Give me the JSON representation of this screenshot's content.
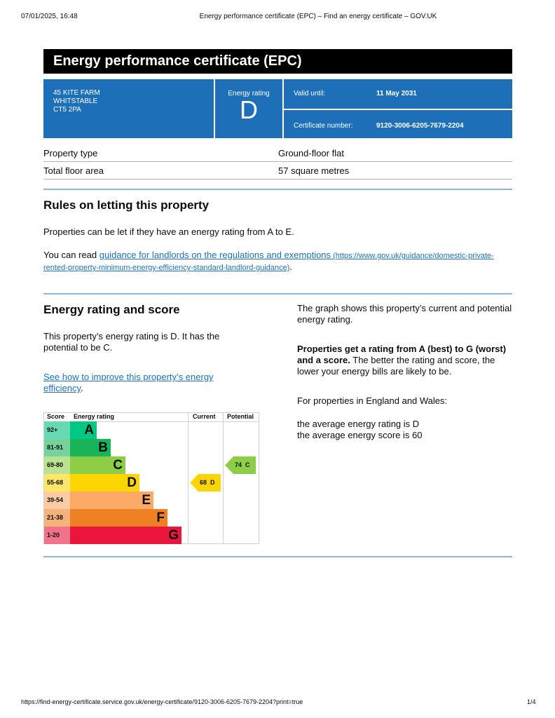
{
  "browser": {
    "datetime": "07/01/2025, 16:48",
    "title": "Energy performance certificate (EPC) – Find an energy certificate – GOV.UK",
    "url": "https://find-energy-certificate.service.gov.uk/energy-certificate/9120-3006-6205-7679-2204?print=true",
    "page": "1/4"
  },
  "header": {
    "title": "Energy performance certificate (EPC)"
  },
  "summary": {
    "address": [
      "45 KITE FARM",
      "WHITSTABLE",
      "CT5 2PA"
    ],
    "rating_label": "Energy rating",
    "rating": "D",
    "valid_label": "Valid until:",
    "valid_value": "11 May 2031",
    "cert_label": "Certificate number:",
    "cert_value": "9120-3006-6205-7679-2204",
    "color": "#1d70b8"
  },
  "property": [
    {
      "label": "Property type",
      "value": "Ground-floor flat"
    },
    {
      "label": "Total floor area",
      "value": "57 square metres"
    }
  ],
  "rules": {
    "heading": "Rules on letting this property",
    "p1": "Properties can be let if they have an energy rating from A to E.",
    "p2_pre": "You can read ",
    "link": "guidance for landlords on the regulations and exemptions",
    "link_url_text": " (https://www.gov.uk/guidance/domestic-private-rented-property-minimum-energy-efficiency-standard-landlord-guidance)",
    "p2_post": "."
  },
  "rating": {
    "heading": "Energy rating and score",
    "p1": "This property’s energy rating is D. It has the potential to be C.",
    "link": "See how to improve this property’s energy efficiency",
    "link_post": ".",
    "r1": "The graph shows this property’s current and potential energy rating.",
    "r2_bold": "Properties get a rating from A (best) to G (worst) and a score.",
    "r2": " The better the rating and score, the lower your energy bills are likely to be.",
    "r3": "For properties in England and Wales:",
    "r4": "the average energy rating is D",
    "r5": "the average energy score is 60"
  },
  "chart_data": {
    "type": "bar",
    "headers": {
      "score": "Score",
      "rating": "Energy rating",
      "current": "Current",
      "potential": "Potential"
    },
    "bands": [
      {
        "letter": "A",
        "score": "92+",
        "color": "#00c781",
        "light": "#66dab3"
      },
      {
        "letter": "B",
        "score": "81-91",
        "color": "#19b459",
        "light": "#75d29b"
      },
      {
        "letter": "C",
        "score": "69-80",
        "color": "#8dce46",
        "light": "#bbe290"
      },
      {
        "letter": "D",
        "score": "55-68",
        "color": "#ffd500",
        "light": "#ffe666"
      },
      {
        "letter": "E",
        "score": "39-54",
        "color": "#fcaa65",
        "light": "#fdcca3"
      },
      {
        "letter": "F",
        "score": "21-38",
        "color": "#ef8023",
        "light": "#f5b37b"
      },
      {
        "letter": "G",
        "score": "1-20",
        "color": "#e9153b",
        "light": "#f27389"
      }
    ],
    "current": {
      "score": 68,
      "letter": "D",
      "label": "68  D"
    },
    "potential": {
      "score": 74,
      "letter": "C",
      "label": "74  C"
    }
  }
}
